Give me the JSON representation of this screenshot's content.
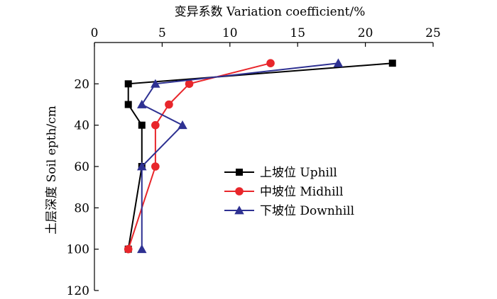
{
  "chart_data": {
    "type": "line",
    "xlabel": "变异系数 Variation coefficient/%",
    "ylabel": "土层深度 Soil epth/cm",
    "x_axis_position": "top",
    "y_axis_inverted": true,
    "xlim": [
      0,
      25
    ],
    "ylim": [
      0,
      120
    ],
    "x_ticks": [
      0,
      5,
      10,
      15,
      20,
      25
    ],
    "x_tick_labels": [
      "0",
      "5",
      "10",
      "15",
      "20",
      "25"
    ],
    "y_ticks": [
      20,
      40,
      60,
      80,
      100,
      120
    ],
    "y_tick_labels": [
      "20",
      "40",
      "60",
      "80",
      "100",
      "120"
    ],
    "grid": false,
    "legend_position": "center-right",
    "series": [
      {
        "name": "上坡位 Uphill",
        "color": "#000000",
        "marker": "square",
        "points": [
          [
            22.0,
            10
          ],
          [
            2.5,
            20
          ],
          [
            2.5,
            30
          ],
          [
            3.5,
            40
          ],
          [
            3.5,
            60
          ],
          [
            2.5,
            100
          ]
        ]
      },
      {
        "name": "中坡位 Midhill",
        "color": "#e8262b",
        "marker": "circle",
        "points": [
          [
            13.0,
            10
          ],
          [
            7.0,
            20
          ],
          [
            5.5,
            30
          ],
          [
            4.5,
            40
          ],
          [
            4.5,
            60
          ],
          [
            2.5,
            100
          ]
        ]
      },
      {
        "name": "下坡位 Downhill",
        "color": "#2e3192",
        "marker": "triangle",
        "points": [
          [
            18.0,
            10
          ],
          [
            4.5,
            20
          ],
          [
            3.5,
            30
          ],
          [
            6.5,
            40
          ],
          [
            3.5,
            60
          ],
          [
            3.5,
            100
          ]
        ]
      }
    ]
  }
}
